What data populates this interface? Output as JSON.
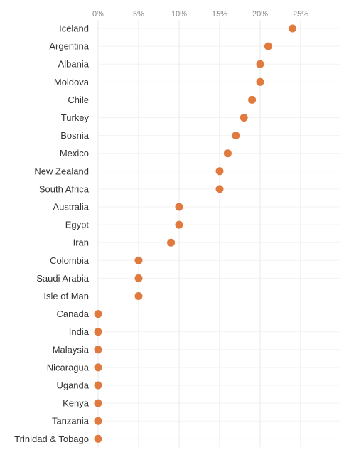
{
  "chart_data": {
    "type": "scatter",
    "orientation": "horizontal",
    "categories": [
      "Iceland",
      "Argentina",
      "Albania",
      "Moldova",
      "Chile",
      "Turkey",
      "Bosnia",
      "Mexico",
      "New Zealand",
      "South Africa",
      "Australia",
      "Egypt",
      "Iran",
      "Colombia",
      "Saudi Arabia",
      "Isle of Man",
      "Canada",
      "India",
      "Malaysia",
      "Nicaragua",
      "Uganda",
      "Kenya",
      "Tanzania",
      "Trinidad & Tobago"
    ],
    "values": [
      24,
      21,
      20,
      20,
      19,
      18,
      17,
      16,
      15,
      15,
      10,
      10,
      9,
      5,
      5,
      5,
      0,
      0,
      0,
      0,
      0,
      0,
      0,
      0
    ],
    "title": "",
    "xlabel": "",
    "ylabel": "",
    "xlim": [
      0,
      30
    ],
    "x_ticks": [
      0,
      5,
      10,
      15,
      20,
      25
    ],
    "x_tick_labels": [
      "0%",
      "5%",
      "10%",
      "15%",
      "20%",
      "25%"
    ],
    "x_axis_position": "top",
    "grid": true,
    "legend": "none",
    "colors": {
      "point": "#e07a3f",
      "grid": "#e9e9e9",
      "tick_text": "#8a8a8a",
      "label_text": "#333333"
    }
  }
}
